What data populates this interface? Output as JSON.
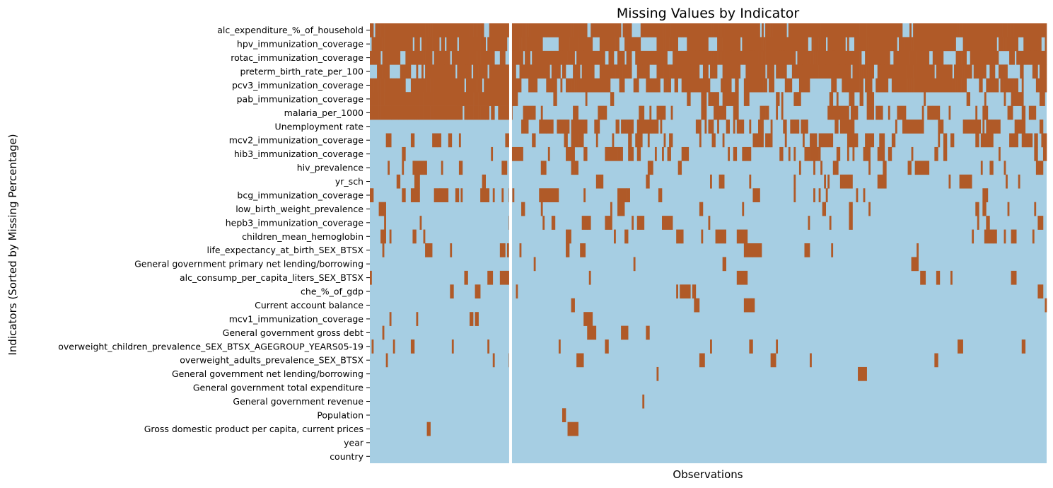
{
  "chart_data": {
    "type": "heatmap",
    "title": "Missing Values by Indicator",
    "xlabel": "Observations",
    "ylabel": "Indicators (Sorted by Missing Percentage)",
    "grid": false,
    "legend": "none",
    "colors": {
      "missing": "#b05a28",
      "present": "#a6cee3",
      "separator": "#ffffff"
    },
    "separator_position": 0.2083,
    "indicators": [
      {
        "label": "alc_expenditure_%_of_household",
        "missing_fraction_left": 0.88,
        "missing_fraction_right": 0.93
      },
      {
        "label": "hpv_immunization_coverage",
        "missing_fraction_left": 0.85,
        "missing_fraction_right": 0.87
      },
      {
        "label": "rotac_immunization_coverage",
        "missing_fraction_left": 0.85,
        "missing_fraction_right": 0.84
      },
      {
        "label": "preterm_birth_rate_per_100",
        "missing_fraction_left": 0.78,
        "missing_fraction_right": 0.82
      },
      {
        "label": "pcv3_immunization_coverage",
        "missing_fraction_left": 0.8,
        "missing_fraction_right": 0.8
      },
      {
        "label": "pab_immunization_coverage",
        "missing_fraction_left": 1.0,
        "missing_fraction_right": 0.26
      },
      {
        "label": "malaria_per_1000",
        "missing_fraction_left": 0.97,
        "missing_fraction_right": 0.22
      },
      {
        "label": "Unemployment rate",
        "missing_fraction_left": 0.0,
        "missing_fraction_right": 0.4
      },
      {
        "label": "mcv2_immunization_coverage",
        "missing_fraction_left": 0.1,
        "missing_fraction_right": 0.3
      },
      {
        "label": "hib3_immunization_coverage",
        "missing_fraction_left": 0.04,
        "missing_fraction_right": 0.22
      },
      {
        "label": "hiv_prevalence",
        "missing_fraction_left": 0.16,
        "missing_fraction_right": 0.18
      },
      {
        "label": "yr_sch",
        "missing_fraction_left": 0.06,
        "missing_fraction_right": 0.12
      },
      {
        "label": "bcg_immunization_coverage",
        "missing_fraction_left": 0.45,
        "missing_fraction_right": 0.12
      },
      {
        "label": "low_birth_weight_prevalence",
        "missing_fraction_left": 0.03,
        "missing_fraction_right": 0.1
      },
      {
        "label": "hepb3_immunization_coverage",
        "missing_fraction_left": 0.18,
        "missing_fraction_right": 0.1
      },
      {
        "label": "children_mean_hemoglobin",
        "missing_fraction_left": 0.06,
        "missing_fraction_right": 0.05
      },
      {
        "label": "life_expectancy_at_birth_SEX_BTSX",
        "missing_fraction_left": 0.06,
        "missing_fraction_right": 0.03
      },
      {
        "label": "General government primary net lending/borrowing",
        "missing_fraction_left": 0.07,
        "missing_fraction_right": 0.03
      },
      {
        "label": "alc_consump_per_capita_liters_SEX_BTSX",
        "missing_fraction_left": 0.07,
        "missing_fraction_right": 0.025
      },
      {
        "label": "che_%_of_gdp",
        "missing_fraction_left": 0.06,
        "missing_fraction_right": 0.025
      },
      {
        "label": "Current account balance",
        "missing_fraction_left": 0.07,
        "missing_fraction_right": 0.025
      },
      {
        "label": "mcv1_immunization_coverage",
        "missing_fraction_left": 0.06,
        "missing_fraction_right": 0.02
      },
      {
        "label": "General government gross debt",
        "missing_fraction_left": 0.02,
        "missing_fraction_right": 0.02
      },
      {
        "label": "overweight_children_prevalence_SEX_BTSX_AGEGROUP_YEARS05-19",
        "missing_fraction_left": 0.06,
        "missing_fraction_right": 0.02
      },
      {
        "label": "overweight_adults_prevalence_SEX_BTSX",
        "missing_fraction_left": 0.06,
        "missing_fraction_right": 0.02
      },
      {
        "label": "General government net lending/borrowing",
        "missing_fraction_left": 0.01,
        "missing_fraction_right": 0.015
      },
      {
        "label": "General government total expenditure",
        "missing_fraction_left": 0.01,
        "missing_fraction_right": 0.015
      },
      {
        "label": "General government revenue",
        "missing_fraction_left": 0.01,
        "missing_fraction_right": 0.012
      },
      {
        "label": "Population",
        "missing_fraction_left": 0.01,
        "missing_fraction_right": 0.012
      },
      {
        "label": "Gross domestic product per capita, current prices",
        "missing_fraction_left": 0.01,
        "missing_fraction_right": 0.012
      },
      {
        "label": "year",
        "missing_fraction_left": 0.0,
        "missing_fraction_right": 0.0
      },
      {
        "label": "country",
        "missing_fraction_left": 0.0,
        "missing_fraction_right": 0.0
      }
    ]
  }
}
